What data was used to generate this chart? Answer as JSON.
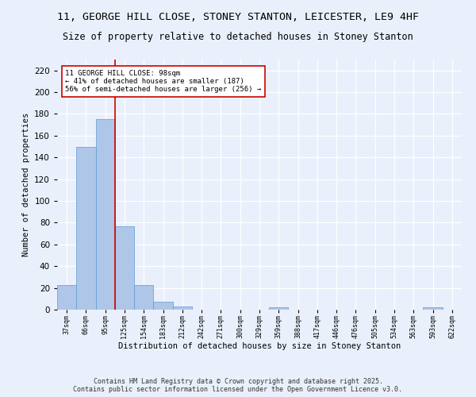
{
  "title": "11, GEORGE HILL CLOSE, STONEY STANTON, LEICESTER, LE9 4HF",
  "subtitle": "Size of property relative to detached houses in Stoney Stanton",
  "xlabel": "Distribution of detached houses by size in Stoney Stanton",
  "ylabel": "Number of detached properties",
  "categories": [
    "37sqm",
    "66sqm",
    "95sqm",
    "125sqm",
    "154sqm",
    "183sqm",
    "212sqm",
    "242sqm",
    "271sqm",
    "300sqm",
    "329sqm",
    "359sqm",
    "388sqm",
    "417sqm",
    "446sqm",
    "476sqm",
    "505sqm",
    "534sqm",
    "563sqm",
    "593sqm",
    "622sqm"
  ],
  "values": [
    23,
    150,
    175,
    77,
    23,
    7,
    3,
    0,
    0,
    0,
    0,
    2,
    0,
    0,
    0,
    0,
    0,
    0,
    0,
    2,
    0
  ],
  "bar_color": "#aec6e8",
  "bar_edge_color": "#5b9bd5",
  "background_color": "#eaf0fb",
  "grid_color": "#ffffff",
  "red_line_x": 2.5,
  "annotation_text": "11 GEORGE HILL CLOSE: 98sqm\n← 41% of detached houses are smaller (187)\n56% of semi-detached houses are larger (256) →",
  "annotation_box_color": "#ffffff",
  "annotation_box_edge": "#cc0000",
  "ylim": [
    0,
    230
  ],
  "yticks": [
    0,
    20,
    40,
    60,
    80,
    100,
    120,
    140,
    160,
    180,
    200,
    220
  ],
  "footer": "Contains HM Land Registry data © Crown copyright and database right 2025.\nContains public sector information licensed under the Open Government Licence v3.0.",
  "title_fontsize": 9.5,
  "subtitle_fontsize": 8.5,
  "footer_fontsize": 6.0
}
